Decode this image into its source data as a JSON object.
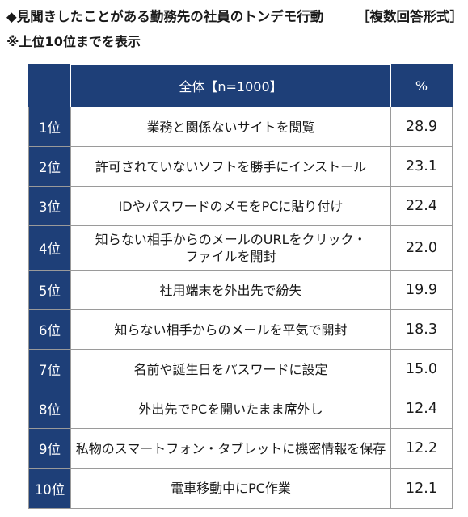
{
  "heading": {
    "title": "◆見聞きしたことがある勤務先の社員のトンデモ行動",
    "bracket": "［複数回答形式］"
  },
  "note": "※上位10位までを表示",
  "table": {
    "header": {
      "rank": "",
      "item": "全体【n=1000】",
      "percent": "%"
    },
    "rows": [
      {
        "rank": "1位",
        "item": "業務と関係ないサイトを閲覧",
        "value": "28.9"
      },
      {
        "rank": "2位",
        "item": "許可されていないソフトを勝手にインストール",
        "value": "23.1"
      },
      {
        "rank": "3位",
        "item": "IDやパスワードのメモをPCに貼り付け",
        "value": "22.4"
      },
      {
        "rank": "4位",
        "item_line1": "知らない相手からのメールのURLをクリック・",
        "item_line2": "ファイルを開封",
        "value": "22.0"
      },
      {
        "rank": "5位",
        "item": "社用端末を外出先で紛失",
        "value": "19.9"
      },
      {
        "rank": "6位",
        "item": "知らない相手からのメールを平気で開封",
        "value": "18.3"
      },
      {
        "rank": "7位",
        "item": "名前や誕生日をパスワードに設定",
        "value": "15.0"
      },
      {
        "rank": "8位",
        "item": "外出先でPCを開いたまま席外し",
        "value": "12.4"
      },
      {
        "rank": "9位",
        "item": "私物のスマートフォン・タブレットに機密情報を保存",
        "value": "12.2"
      },
      {
        "rank": "10位",
        "item": "電車移動中にPC作業",
        "value": "12.1"
      }
    ]
  },
  "colors": {
    "header_bg": "#1e3f78",
    "header_text": "#ffffff",
    "border": "#9a9a9a"
  }
}
